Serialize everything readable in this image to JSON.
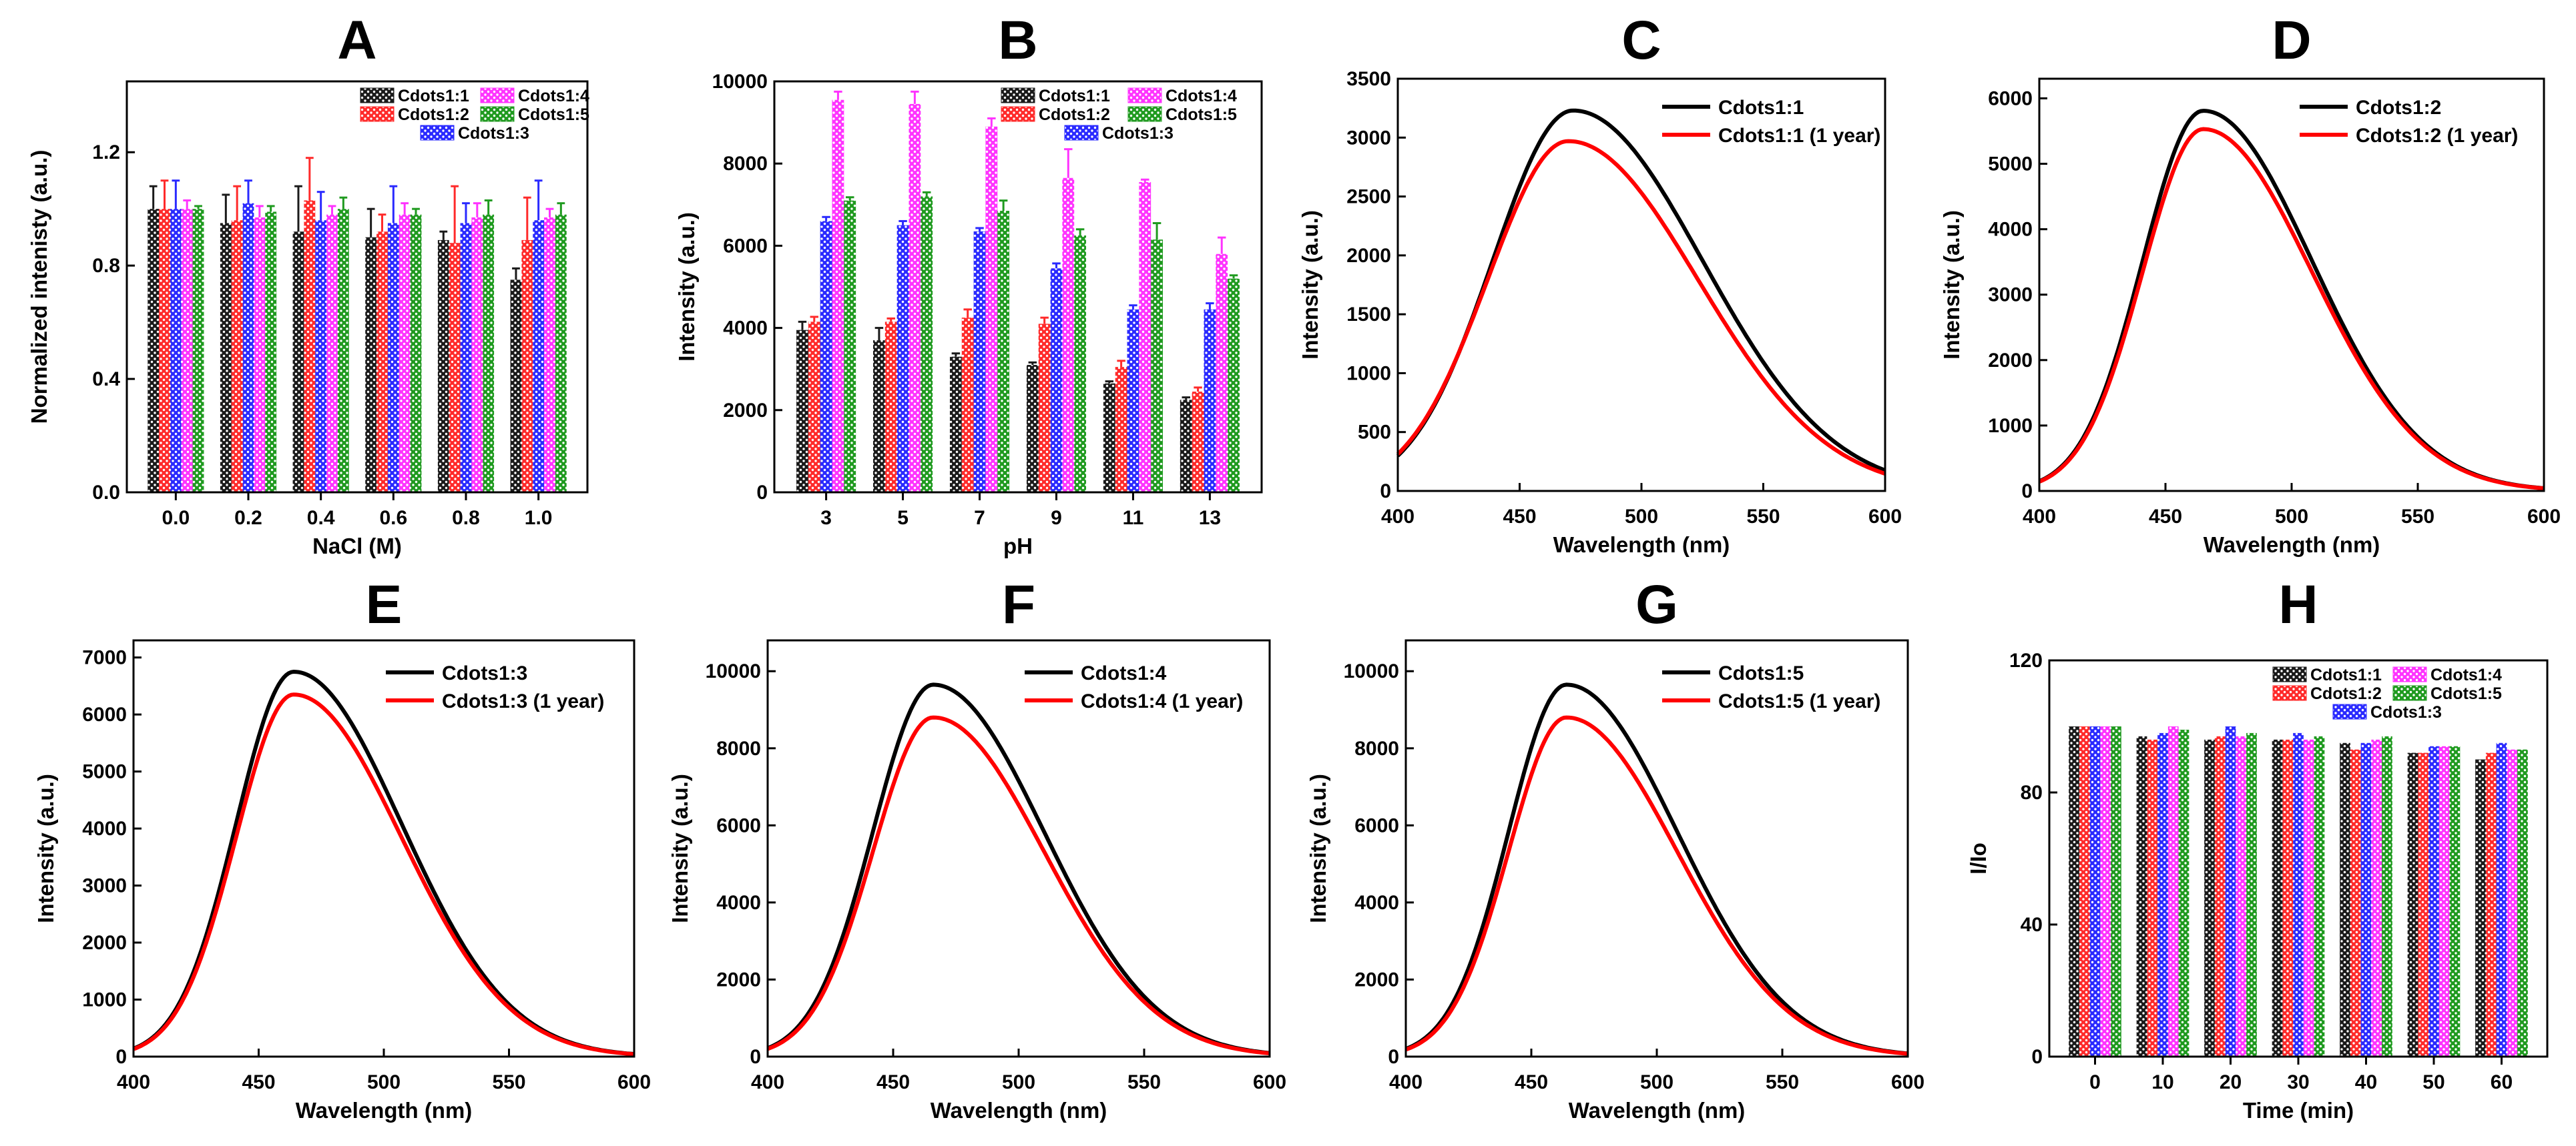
{
  "colors": {
    "Cdots1:1": "#1a1a1a",
    "Cdots1:2": "#ff2a2a",
    "Cdots1:3": "#2a2aff",
    "Cdots1:4": "#ff33ff",
    "Cdots1:5": "#1f9a1f",
    "fresh": "#000000",
    "aged": "#ff0000"
  },
  "chart_data": [
    {
      "id": "A",
      "type": "bar",
      "letter": "A",
      "xlabel": "NaCl (M)",
      "ylabel": "Normalized intenisty (a.u.)",
      "categories": [
        "0.0",
        "0.2",
        "0.4",
        "0.6",
        "0.8",
        "1.0"
      ],
      "yticks": [
        "0.0",
        "0.4",
        "0.8",
        "1.2"
      ],
      "ytick_values": [
        0,
        0.4,
        0.8,
        1.2
      ],
      "ylim": [
        0,
        1.45
      ],
      "legend_rows": [
        [
          "Cdots1:1",
          "Cdots1:4"
        ],
        [
          "Cdots1:2",
          "Cdots1:5"
        ],
        [
          "Cdots1:3"
        ]
      ],
      "series": [
        {
          "name": "Cdots1:1",
          "values": [
            1.0,
            0.95,
            0.92,
            0.9,
            0.89,
            0.75
          ],
          "errors": [
            0.08,
            0.1,
            0.16,
            0.1,
            0.03,
            0.04
          ]
        },
        {
          "name": "Cdots1:2",
          "values": [
            1.0,
            0.96,
            1.03,
            0.92,
            0.88,
            0.89
          ],
          "errors": [
            0.1,
            0.12,
            0.15,
            0.06,
            0.2,
            0.15
          ]
        },
        {
          "name": "Cdots1:3",
          "values": [
            1.0,
            1.02,
            0.96,
            0.95,
            0.95,
            0.96
          ],
          "errors": [
            0.1,
            0.08,
            0.1,
            0.13,
            0.07,
            0.14
          ]
        },
        {
          "name": "Cdots1:4",
          "values": [
            1.0,
            0.97,
            0.98,
            0.98,
            0.97,
            0.97
          ],
          "errors": [
            0.03,
            0.04,
            0.03,
            0.04,
            0.05,
            0.03
          ]
        },
        {
          "name": "Cdots1:5",
          "values": [
            1.0,
            0.99,
            1.0,
            0.98,
            0.98,
            0.98
          ],
          "errors": [
            0.01,
            0.02,
            0.04,
            0.02,
            0.05,
            0.04
          ]
        }
      ]
    },
    {
      "id": "B",
      "type": "bar",
      "letter": "B",
      "xlabel": "pH",
      "ylabel": "Intensity (a.u.)",
      "categories": [
        "3",
        "5",
        "7",
        "9",
        "11",
        "13"
      ],
      "yticks": [
        "0",
        "2000",
        "4000",
        "6000",
        "8000",
        "10000"
      ],
      "ytick_values": [
        0,
        2000,
        4000,
        6000,
        8000,
        10000
      ],
      "ylim": [
        0,
        10000
      ],
      "legend_rows": [
        [
          "Cdots1:1",
          "Cdots1:4"
        ],
        [
          "Cdots1:2",
          "Cdots1:5"
        ],
        [
          "Cdots1:3"
        ]
      ],
      "series": [
        {
          "name": "Cdots1:1",
          "values": [
            3950,
            3700,
            3300,
            3100,
            2650,
            2250
          ],
          "errors": [
            200,
            300,
            80,
            60,
            50,
            60
          ]
        },
        {
          "name": "Cdots1:2",
          "values": [
            4150,
            4150,
            4250,
            4100,
            3050,
            2450
          ],
          "errors": [
            120,
            80,
            200,
            150,
            150,
            100
          ]
        },
        {
          "name": "Cdots1:3",
          "values": [
            6600,
            6500,
            6350,
            5450,
            4450,
            4450
          ],
          "errors": [
            100,
            100,
            80,
            120,
            100,
            150
          ]
        },
        {
          "name": "Cdots1:4",
          "values": [
            9550,
            9450,
            8900,
            7650,
            7550,
            5800
          ],
          "errors": [
            200,
            300,
            200,
            700,
            60,
            400
          ]
        },
        {
          "name": "Cdots1:5",
          "values": [
            7100,
            7200,
            6850,
            6250,
            6150,
            5200
          ],
          "errors": [
            80,
            100,
            250,
            150,
            400,
            80
          ]
        }
      ]
    },
    {
      "id": "C",
      "type": "line",
      "letter": "C",
      "xlabel": "Wavelength (nm)",
      "ylabel": "Intensity (a.u.)",
      "xlim": [
        400,
        600
      ],
      "xticks": [
        "400",
        "450",
        "500",
        "550",
        "600"
      ],
      "xtick_values": [
        400,
        450,
        500,
        550,
        600
      ],
      "ylim": [
        0,
        3500
      ],
      "yticks": [
        "0",
        "500",
        "1000",
        "1500",
        "2000",
        "2500",
        "3000",
        "3500"
      ],
      "ytick_values": [
        0,
        500,
        1000,
        1500,
        2000,
        2500,
        3000,
        3500
      ],
      "series": [
        {
          "name": "Cdots1:1",
          "peak_x": 472,
          "peak_y": 3230,
          "sigma_left": 33,
          "sigma_right": 53
        },
        {
          "name": "Cdots1:1 (1 year)",
          "peak_x": 470,
          "peak_y": 2970,
          "sigma_left": 33,
          "sigma_right": 53
        }
      ]
    },
    {
      "id": "D",
      "type": "line",
      "letter": "D",
      "xlabel": "Wavelength (nm)",
      "ylabel": "Intensity (a.u.)",
      "xlim": [
        400,
        600
      ],
      "xticks": [
        "400",
        "450",
        "500",
        "550",
        "600"
      ],
      "xtick_values": [
        400,
        450,
        500,
        550,
        600
      ],
      "ylim": [
        0,
        6300
      ],
      "yticks": [
        "0",
        "1000",
        "2000",
        "3000",
        "4000",
        "5000",
        "6000"
      ],
      "ytick_values": [
        0,
        1000,
        2000,
        3000,
        4000,
        5000,
        6000
      ],
      "series": [
        {
          "name": "Cdots1:2",
          "peak_x": 465,
          "peak_y": 5810,
          "sigma_left": 24,
          "sigma_right": 43
        },
        {
          "name": "Cdots1:2 (1 year)",
          "peak_x": 465,
          "peak_y": 5530,
          "sigma_left": 24,
          "sigma_right": 43
        }
      ]
    },
    {
      "id": "E",
      "type": "line",
      "letter": "E",
      "xlabel": "Wavelength (nm)",
      "ylabel": "Intensity (a.u.)",
      "xlim": [
        400,
        600
      ],
      "xticks": [
        "400",
        "450",
        "500",
        "550",
        "600"
      ],
      "xtick_values": [
        400,
        450,
        500,
        550,
        600
      ],
      "ylim": [
        0,
        7300
      ],
      "yticks": [
        "0",
        "1000",
        "2000",
        "3000",
        "4000",
        "5000",
        "6000",
        "7000"
      ],
      "ytick_values": [
        0,
        1000,
        2000,
        3000,
        4000,
        5000,
        6000,
        7000
      ],
      "series": [
        {
          "name": "Cdots1:3",
          "peak_x": 464,
          "peak_y": 6750,
          "sigma_left": 23,
          "sigma_right": 43
        },
        {
          "name": "Cdots1:3 (1 year)",
          "peak_x": 464,
          "peak_y": 6350,
          "sigma_left": 23,
          "sigma_right": 43
        }
      ]
    },
    {
      "id": "F",
      "type": "line",
      "letter": "F",
      "xlabel": "Wavelength (nm)",
      "ylabel": "Intensity (a.u.)",
      "xlim": [
        400,
        600
      ],
      "xticks": [
        "400",
        "450",
        "500",
        "550",
        "600"
      ],
      "xtick_values": [
        400,
        450,
        500,
        550,
        600
      ],
      "ylim": [
        0,
        10800
      ],
      "yticks": [
        "0",
        "2000",
        "4000",
        "6000",
        "8000",
        "10000"
      ],
      "ytick_values": [
        0,
        2000,
        4000,
        6000,
        8000,
        10000
      ],
      "series": [
        {
          "name": "Cdots1:4",
          "peak_x": 466,
          "peak_y": 9650,
          "sigma_left": 24,
          "sigma_right": 44
        },
        {
          "name": "Cdots1:4 (1 year)",
          "peak_x": 466,
          "peak_y": 8800,
          "sigma_left": 24,
          "sigma_right": 44
        }
      ]
    },
    {
      "id": "G",
      "type": "line",
      "letter": "G",
      "xlabel": "Wavelength (nm)",
      "ylabel": "Intensity (a.u.)",
      "xlim": [
        400,
        600
      ],
      "xticks": [
        "400",
        "450",
        "500",
        "550",
        "600"
      ],
      "xtick_values": [
        400,
        450,
        500,
        550,
        600
      ],
      "ylim": [
        0,
        10800
      ],
      "yticks": [
        "0",
        "2000",
        "4000",
        "6000",
        "8000",
        "10000"
      ],
      "ytick_values": [
        0,
        2000,
        4000,
        6000,
        8000,
        10000
      ],
      "series": [
        {
          "name": "Cdots1:5",
          "peak_x": 464,
          "peak_y": 9650,
          "sigma_left": 23,
          "sigma_right": 44
        },
        {
          "name": "Cdots1:5 (1 year)",
          "peak_x": 464,
          "peak_y": 8800,
          "sigma_left": 23,
          "sigma_right": 44
        }
      ]
    },
    {
      "id": "H",
      "type": "bar",
      "letter": "H",
      "xlabel": "Time (min)",
      "ylabel": "I/Io",
      "categories": [
        "0",
        "10",
        "20",
        "30",
        "40",
        "50",
        "60"
      ],
      "yticks": [
        "0",
        "40",
        "80",
        "120"
      ],
      "ytick_values": [
        0,
        40,
        80,
        120
      ],
      "ylim": [
        0,
        120
      ],
      "legend_rows": [
        [
          "Cdots1:1",
          "Cdots1:4"
        ],
        [
          "Cdots1:2",
          "Cdots1:5"
        ],
        [
          "Cdots1:3"
        ]
      ],
      "series": [
        {
          "name": "Cdots1:1",
          "values": [
            100,
            97,
            96,
            96,
            95,
            92,
            90
          ],
          "errors": [
            0,
            0,
            0,
            0,
            0,
            0,
            0
          ]
        },
        {
          "name": "Cdots1:2",
          "values": [
            100,
            96,
            97,
            96,
            93,
            92,
            92
          ],
          "errors": [
            0,
            0,
            0,
            0,
            0,
            0,
            0
          ]
        },
        {
          "name": "Cdots1:3",
          "values": [
            100,
            98,
            100,
            98,
            95,
            94,
            95
          ],
          "errors": [
            0,
            0,
            0,
            0,
            0,
            0,
            0
          ]
        },
        {
          "name": "Cdots1:4",
          "values": [
            100,
            100,
            97,
            96,
            96,
            94,
            93
          ],
          "errors": [
            0,
            0,
            0,
            0,
            0,
            0,
            0
          ]
        },
        {
          "name": "Cdots1:5",
          "values": [
            100,
            99,
            98,
            97,
            97,
            94,
            93
          ],
          "errors": [
            0,
            0,
            0,
            0,
            0,
            0,
            0
          ]
        }
      ]
    }
  ]
}
